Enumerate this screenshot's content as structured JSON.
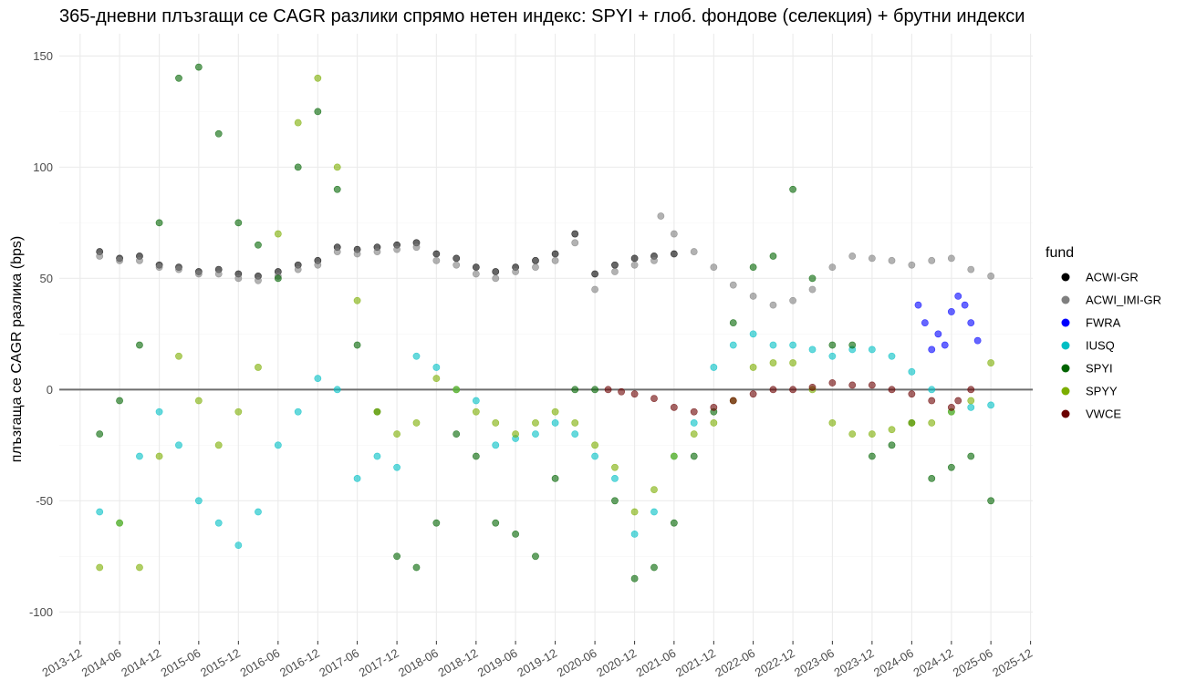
{
  "chart_data": {
    "type": "scatter",
    "title": "365-дневни плъзгащи се CAGR разлики спрямо нетен индекс: SPYI + глоб. фондове (селекция) + брутни индекси",
    "xlabel": "",
    "ylabel": "плъзгаща се CAGR разлика (bps)",
    "ylim": [
      -113,
      160
    ],
    "xlim": [
      "2013-09-10",
      "2025-12-25"
    ],
    "y_ticks": [
      150,
      100,
      50,
      0,
      -50,
      -100
    ],
    "y_tick_labels": [
      "150",
      "100",
      "50",
      "0",
      "-50",
      "-100"
    ],
    "x_ticks": [
      "2013-12",
      "2014-06",
      "2014-12",
      "2015-06",
      "2015-12",
      "2016-06",
      "2016-12",
      "2017-06",
      "2017-12",
      "2018-06",
      "2018-12",
      "2019-06",
      "2019-12",
      "2020-06",
      "2020-12",
      "2021-06",
      "2021-12",
      "2022-06",
      "2022-12",
      "2023-06",
      "2023-12",
      "2024-06",
      "2024-12",
      "2025-06",
      "2025-12"
    ],
    "grid": true,
    "reference_line_y": 0,
    "legend": {
      "title": "fund",
      "placement": "right"
    },
    "series": [
      {
        "name": "ACWI-GR",
        "color": "#000000",
        "points": [
          [
            "2014-03",
            62
          ],
          [
            "2014-06",
            59
          ],
          [
            "2014-09",
            60
          ],
          [
            "2014-12",
            56
          ],
          [
            "2015-03",
            55
          ],
          [
            "2015-06",
            53
          ],
          [
            "2015-09",
            54
          ],
          [
            "2015-12",
            52
          ],
          [
            "2016-03",
            51
          ],
          [
            "2016-06",
            53
          ],
          [
            "2016-09",
            56
          ],
          [
            "2016-12",
            58
          ],
          [
            "2017-03",
            64
          ],
          [
            "2017-06",
            63
          ],
          [
            "2017-09",
            64
          ],
          [
            "2017-12",
            65
          ],
          [
            "2018-03",
            66
          ],
          [
            "2018-06",
            61
          ],
          [
            "2018-09",
            59
          ],
          [
            "2018-12",
            55
          ],
          [
            "2019-03",
            53
          ],
          [
            "2019-06",
            55
          ],
          [
            "2019-09",
            58
          ],
          [
            "2019-12",
            61
          ],
          [
            "2020-03",
            70
          ],
          [
            "2020-06",
            52
          ],
          [
            "2020-09",
            56
          ],
          [
            "2020-12",
            59
          ],
          [
            "2021-03",
            60
          ],
          [
            "2021-06",
            61
          ]
        ]
      },
      {
        "name": "ACWI_IMI-GR",
        "color": "#7f7f7f",
        "points": [
          [
            "2014-03",
            60
          ],
          [
            "2014-06",
            58
          ],
          [
            "2014-09",
            58
          ],
          [
            "2014-12",
            55
          ],
          [
            "2015-03",
            54
          ],
          [
            "2015-06",
            52
          ],
          [
            "2015-09",
            52
          ],
          [
            "2015-12",
            50
          ],
          [
            "2016-03",
            49
          ],
          [
            "2016-06",
            51
          ],
          [
            "2016-09",
            54
          ],
          [
            "2016-12",
            56
          ],
          [
            "2017-03",
            62
          ],
          [
            "2017-06",
            61
          ],
          [
            "2017-09",
            62
          ],
          [
            "2017-12",
            63
          ],
          [
            "2018-03",
            64
          ],
          [
            "2018-06",
            58
          ],
          [
            "2018-09",
            56
          ],
          [
            "2018-12",
            52
          ],
          [
            "2019-03",
            50
          ],
          [
            "2019-06",
            53
          ],
          [
            "2019-09",
            55
          ],
          [
            "2019-12",
            58
          ],
          [
            "2020-03",
            66
          ],
          [
            "2020-06",
            45
          ],
          [
            "2020-09",
            53
          ],
          [
            "2020-12",
            56
          ],
          [
            "2021-03",
            58
          ],
          [
            "2021-04",
            78
          ],
          [
            "2021-06",
            70
          ],
          [
            "2021-09",
            62
          ],
          [
            "2021-12",
            55
          ],
          [
            "2022-03",
            47
          ],
          [
            "2022-06",
            42
          ],
          [
            "2022-09",
            38
          ],
          [
            "2022-12",
            40
          ],
          [
            "2023-03",
            45
          ],
          [
            "2023-06",
            55
          ],
          [
            "2023-09",
            60
          ],
          [
            "2023-12",
            59
          ],
          [
            "2024-03",
            58
          ],
          [
            "2024-06",
            56
          ],
          [
            "2024-09",
            58
          ],
          [
            "2024-12",
            59
          ],
          [
            "2025-03",
            54
          ],
          [
            "2025-06",
            51
          ]
        ]
      },
      {
        "name": "FWRA",
        "color": "#0000ff",
        "points": [
          [
            "2024-07",
            38
          ],
          [
            "2024-08",
            30
          ],
          [
            "2024-09",
            18
          ],
          [
            "2024-10",
            25
          ],
          [
            "2024-11",
            20
          ],
          [
            "2024-12",
            35
          ],
          [
            "2025-01",
            42
          ],
          [
            "2025-02",
            38
          ],
          [
            "2025-03",
            30
          ],
          [
            "2025-04",
            22
          ]
        ]
      },
      {
        "name": "IUSQ",
        "color": "#00bfc4",
        "points": [
          [
            "2014-03",
            -55
          ],
          [
            "2014-06",
            -60
          ],
          [
            "2014-09",
            -30
          ],
          [
            "2014-12",
            -10
          ],
          [
            "2015-03",
            -25
          ],
          [
            "2015-06",
            -50
          ],
          [
            "2015-09",
            -60
          ],
          [
            "2015-12",
            -70
          ],
          [
            "2016-03",
            -55
          ],
          [
            "2016-06",
            -25
          ],
          [
            "2016-09",
            -10
          ],
          [
            "2016-12",
            5
          ],
          [
            "2017-03",
            0
          ],
          [
            "2017-06",
            -40
          ],
          [
            "2017-09",
            -30
          ],
          [
            "2017-12",
            -35
          ],
          [
            "2018-03",
            15
          ],
          [
            "2018-06",
            10
          ],
          [
            "2018-09",
            0
          ],
          [
            "2018-12",
            -5
          ],
          [
            "2019-03",
            -25
          ],
          [
            "2019-06",
            -22
          ],
          [
            "2019-09",
            -20
          ],
          [
            "2019-12",
            -15
          ],
          [
            "2020-03",
            -20
          ],
          [
            "2020-06",
            -30
          ],
          [
            "2020-09",
            -40
          ],
          [
            "2020-12",
            -65
          ],
          [
            "2021-03",
            -55
          ],
          [
            "2021-06",
            -30
          ],
          [
            "2021-09",
            -15
          ],
          [
            "2021-12",
            10
          ],
          [
            "2022-03",
            20
          ],
          [
            "2022-06",
            25
          ],
          [
            "2022-09",
            20
          ],
          [
            "2022-12",
            20
          ],
          [
            "2023-03",
            18
          ],
          [
            "2023-06",
            15
          ],
          [
            "2023-09",
            18
          ],
          [
            "2023-12",
            18
          ],
          [
            "2024-03",
            15
          ],
          [
            "2024-06",
            8
          ],
          [
            "2024-09",
            0
          ],
          [
            "2024-12",
            -10
          ],
          [
            "2025-03",
            -8
          ],
          [
            "2025-06",
            -7
          ]
        ]
      },
      {
        "name": "SPYI",
        "color": "#006400",
        "points": [
          [
            "2014-03",
            -20
          ],
          [
            "2014-06",
            -5
          ],
          [
            "2014-09",
            20
          ],
          [
            "2014-12",
            75
          ],
          [
            "2015-03",
            140
          ],
          [
            "2015-06",
            145
          ],
          [
            "2015-09",
            115
          ],
          [
            "2015-12",
            75
          ],
          [
            "2016-03",
            65
          ],
          [
            "2016-06",
            50
          ],
          [
            "2016-09",
            100
          ],
          [
            "2016-12",
            125
          ],
          [
            "2017-03",
            90
          ],
          [
            "2017-06",
            20
          ],
          [
            "2017-09",
            -10
          ],
          [
            "2017-12",
            -75
          ],
          [
            "2018-03",
            -80
          ],
          [
            "2018-06",
            -60
          ],
          [
            "2018-09",
            -20
          ],
          [
            "2018-12",
            -30
          ],
          [
            "2019-03",
            -60
          ],
          [
            "2019-06",
            -65
          ],
          [
            "2019-09",
            -75
          ],
          [
            "2019-12",
            -40
          ],
          [
            "2020-03",
            0
          ],
          [
            "2020-06",
            0
          ],
          [
            "2020-09",
            -50
          ],
          [
            "2020-12",
            -85
          ],
          [
            "2021-03",
            -80
          ],
          [
            "2021-06",
            -60
          ],
          [
            "2021-09",
            -30
          ],
          [
            "2021-12",
            -10
          ],
          [
            "2022-03",
            30
          ],
          [
            "2022-06",
            55
          ],
          [
            "2022-09",
            60
          ],
          [
            "2022-12",
            90
          ],
          [
            "2023-03",
            50
          ],
          [
            "2023-06",
            20
          ],
          [
            "2023-09",
            20
          ],
          [
            "2023-12",
            -30
          ],
          [
            "2024-03",
            -25
          ],
          [
            "2024-06",
            -15
          ],
          [
            "2024-09",
            -40
          ],
          [
            "2024-12",
            -35
          ],
          [
            "2025-03",
            -30
          ],
          [
            "2025-06",
            -50
          ]
        ]
      },
      {
        "name": "SPYY",
        "color": "#7cae00",
        "points": [
          [
            "2014-03",
            -80
          ],
          [
            "2014-06",
            -60
          ],
          [
            "2014-09",
            -80
          ],
          [
            "2014-12",
            -30
          ],
          [
            "2015-03",
            15
          ],
          [
            "2015-06",
            -5
          ],
          [
            "2015-09",
            -25
          ],
          [
            "2015-12",
            -10
          ],
          [
            "2016-03",
            10
          ],
          [
            "2016-06",
            70
          ],
          [
            "2016-09",
            120
          ],
          [
            "2016-12",
            140
          ],
          [
            "2017-03",
            100
          ],
          [
            "2017-06",
            40
          ],
          [
            "2017-09",
            -10
          ],
          [
            "2017-12",
            -20
          ],
          [
            "2018-03",
            -15
          ],
          [
            "2018-06",
            5
          ],
          [
            "2018-09",
            0
          ],
          [
            "2018-12",
            -10
          ],
          [
            "2019-03",
            -15
          ],
          [
            "2019-06",
            -20
          ],
          [
            "2019-09",
            -15
          ],
          [
            "2019-12",
            -10
          ],
          [
            "2020-03",
            -15
          ],
          [
            "2020-06",
            -25
          ],
          [
            "2020-09",
            -35
          ],
          [
            "2020-12",
            -55
          ],
          [
            "2021-03",
            -45
          ],
          [
            "2021-06",
            -30
          ],
          [
            "2021-09",
            -20
          ],
          [
            "2021-12",
            -15
          ],
          [
            "2022-03",
            -5
          ],
          [
            "2022-06",
            10
          ],
          [
            "2022-09",
            12
          ],
          [
            "2022-12",
            12
          ],
          [
            "2023-03",
            0
          ],
          [
            "2023-06",
            -15
          ],
          [
            "2023-09",
            -20
          ],
          [
            "2023-12",
            -20
          ],
          [
            "2024-03",
            -18
          ],
          [
            "2024-06",
            -15
          ],
          [
            "2024-09",
            -15
          ],
          [
            "2024-12",
            -10
          ],
          [
            "2025-03",
            -5
          ],
          [
            "2025-06",
            12
          ]
        ]
      },
      {
        "name": "VWCE",
        "color": "#6b0000",
        "points": [
          [
            "2020-08",
            0
          ],
          [
            "2020-10",
            -1
          ],
          [
            "2020-12",
            -2
          ],
          [
            "2021-03",
            -4
          ],
          [
            "2021-06",
            -8
          ],
          [
            "2021-09",
            -10
          ],
          [
            "2021-12",
            -8
          ],
          [
            "2022-03",
            -5
          ],
          [
            "2022-06",
            -2
          ],
          [
            "2022-09",
            0
          ],
          [
            "2022-12",
            0
          ],
          [
            "2023-03",
            1
          ],
          [
            "2023-06",
            3
          ],
          [
            "2023-09",
            2
          ],
          [
            "2023-12",
            2
          ],
          [
            "2024-03",
            0
          ],
          [
            "2024-06",
            -2
          ],
          [
            "2024-09",
            -5
          ],
          [
            "2024-12",
            -8
          ],
          [
            "2025-01",
            -5
          ],
          [
            "2025-03",
            0
          ]
        ]
      }
    ]
  }
}
